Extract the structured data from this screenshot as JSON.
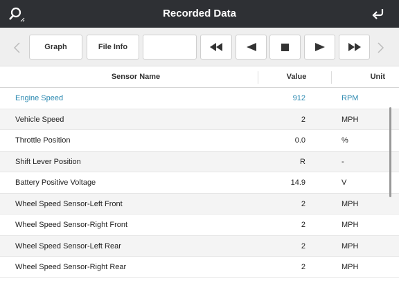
{
  "header": {
    "title": "Recorded Data"
  },
  "toolbar": {
    "buttons": [
      "Graph",
      "File Info"
    ]
  },
  "table": {
    "columns": [
      "Sensor Name",
      "Value",
      "Unit"
    ],
    "rows": [
      [
        "Engine Speed",
        "912",
        "RPM"
      ],
      [
        "Vehicle Speed",
        "2",
        "MPH"
      ],
      [
        "Throttle Position",
        "0.0",
        "%"
      ],
      [
        "Shift Lever Position",
        "R",
        "-"
      ],
      [
        "Battery Positive Voltage",
        "14.9",
        "V"
      ],
      [
        "Wheel Speed Sensor-Left Front",
        "2",
        "MPH"
      ],
      [
        "Wheel Speed Sensor-Right Front",
        "2",
        "MPH"
      ],
      [
        "Wheel Speed Sensor-Left Rear",
        "2",
        "MPH"
      ],
      [
        "Wheel Speed Sensor-Right Rear",
        "2",
        "MPH"
      ]
    ]
  }
}
